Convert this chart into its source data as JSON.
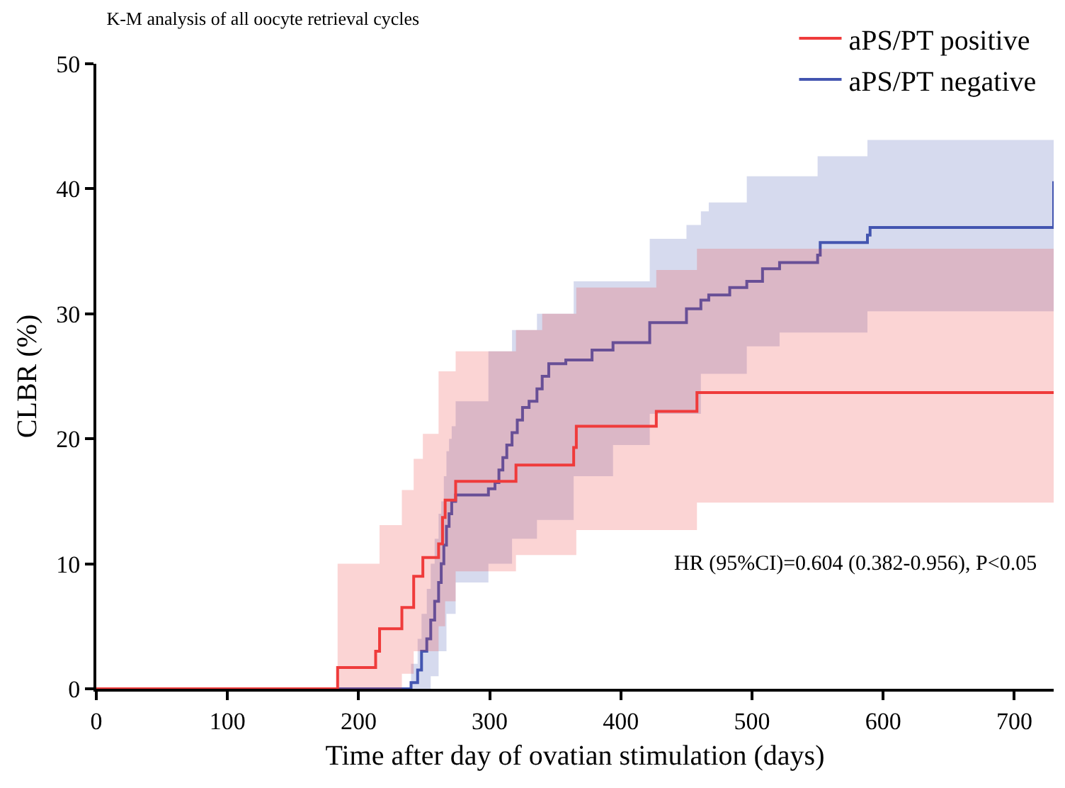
{
  "chart_data": {
    "type": "step",
    "title": "K-M analysis of all oocyte retrieval cycles",
    "xlabel": "Time after day of ovatian stimulation (days)",
    "ylabel": "CLBR (%)",
    "xlim": [
      0,
      730
    ],
    "xticks": [
      0,
      100,
      200,
      300,
      400,
      500,
      600,
      700
    ],
    "ylim": [
      0,
      50
    ],
    "yticks": [
      0,
      10,
      20,
      30,
      40,
      50
    ],
    "grid": false,
    "legend": "top right",
    "annotations": [
      "HR (95%CI)=0.604 (0.382-0.956), P<0.05"
    ],
    "series": [
      {
        "name": "aPS/PT negative",
        "color": "#4355b0",
        "x": [
          0,
          240,
          245,
          248,
          252,
          255,
          258,
          261,
          263,
          265,
          267,
          269,
          271,
          274,
          299,
          304,
          307,
          310,
          313,
          317,
          321,
          325,
          330,
          336,
          340,
          345,
          358,
          364,
          378,
          394,
          422,
          450,
          461,
          467,
          483,
          496,
          508,
          521,
          550,
          552,
          588,
          590,
          730,
          730
        ],
        "values": [
          0,
          0.5,
          1.5,
          3,
          4,
          5.5,
          7,
          8.5,
          10,
          11.5,
          13,
          14,
          15,
          15.5,
          16,
          16.5,
          17.5,
          18.5,
          19.5,
          20.5,
          21.5,
          22.5,
          23,
          24,
          25,
          26,
          26.3,
          26.3,
          27.1,
          27.7,
          29.3,
          30.4,
          31.1,
          31.5,
          32.1,
          32.6,
          33.6,
          34.1,
          34.7,
          35.7,
          36.3,
          36.9,
          36.9,
          40.6
        ],
        "upper": [
          0,
          2,
          4,
          6,
          8,
          10,
          12,
          14,
          15,
          17,
          19,
          20,
          21,
          23,
          27,
          27,
          27,
          27,
          27,
          28.7,
          28.7,
          28.7,
          28.7,
          30,
          30,
          30,
          30,
          32.6,
          32.6,
          32.6,
          36,
          37.1,
          38.2,
          38.9,
          38.9,
          41,
          41,
          41,
          42.6,
          42.6,
          43.9,
          43.9,
          43.9,
          43.9
        ],
        "lower": [
          0,
          0,
          0,
          0,
          0,
          1,
          1,
          3,
          3,
          3,
          6,
          6,
          6,
          8.5,
          10,
          10,
          10,
          10,
          10,
          12,
          12,
          12,
          12,
          13.5,
          13.5,
          13.5,
          13.5,
          17,
          17,
          19.5,
          22,
          22,
          25.2,
          25.2,
          25.2,
          27.4,
          27.4,
          28.5,
          28.5,
          28.5,
          30.2,
          30.2,
          30.2,
          30.2
        ]
      },
      {
        "name": "aPS/PT positive",
        "color": "#ef3b3b",
        "x": [
          0,
          184,
          213,
          216,
          233,
          242,
          249,
          261,
          264,
          266,
          274,
          320,
          340,
          364,
          366,
          427,
          458,
          730
        ],
        "values": [
          0,
          1.7,
          3.0,
          4.8,
          6.5,
          9.0,
          10.5,
          11.6,
          13.7,
          15.1,
          16.6,
          17.9,
          17.9,
          19.3,
          21.0,
          22.2,
          23.7,
          23.7
        ],
        "upper": [
          0,
          10,
          10,
          13.1,
          15.9,
          18.4,
          20.4,
          25.4,
          25.4,
          25.4,
          27,
          28.7,
          30,
          30,
          32.1,
          33.5,
          35.2,
          35.2
        ],
        "lower": [
          0,
          0,
          0,
          0,
          1.2,
          3,
          3,
          5,
          5,
          7,
          9.4,
          10.7,
          10.7,
          10.7,
          12.7,
          12.7,
          14.9,
          14.9
        ]
      }
    ]
  }
}
